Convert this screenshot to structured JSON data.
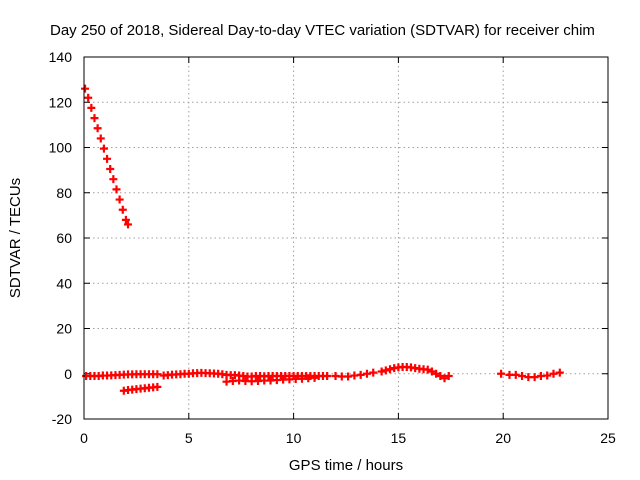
{
  "chart_data": {
    "type": "scatter",
    "title": "Day 250 of 2018, Sidereal Day-to-day VTEC variation (SDTVAR) for receiver chim",
    "xlabel": "GPS time / hours",
    "ylabel": "SDTVAR / TECUs",
    "xlim": [
      0,
      25
    ],
    "ylim": [
      -20,
      140
    ],
    "xticks": [
      0,
      5,
      10,
      15,
      20,
      25
    ],
    "yticks": [
      -20,
      0,
      20,
      40,
      60,
      80,
      100,
      120,
      140
    ],
    "xtick_labels": [
      "0",
      "5",
      "10",
      "15",
      "20",
      "25"
    ],
    "ytick_labels": [
      "-20",
      "0",
      "20",
      "40",
      "60",
      "80",
      "100",
      "120",
      "140"
    ],
    "grid": true,
    "marker": "plus",
    "color": "#ff0000",
    "series": [
      {
        "name": "SDTVAR",
        "x": [
          0.05,
          0.2,
          0.35,
          0.5,
          0.65,
          0.8,
          0.95,
          1.1,
          1.25,
          1.4,
          1.55,
          1.7,
          1.85,
          2.0,
          2.1,
          0.1,
          0.3,
          0.5,
          0.7,
          0.9,
          1.1,
          1.3,
          1.5,
          1.7,
          1.9,
          2.1,
          2.3,
          2.5,
          2.7,
          2.9,
          3.1,
          3.3,
          3.5,
          1.9,
          2.1,
          2.3,
          2.5,
          2.7,
          2.9,
          3.1,
          3.3,
          3.5,
          3.8,
          4.0,
          4.2,
          4.4,
          4.6,
          4.8,
          5.0,
          5.2,
          5.4,
          5.6,
          5.8,
          6.0,
          6.2,
          6.4,
          6.6,
          6.8,
          7.0,
          7.2,
          7.4,
          7.6,
          7.8,
          8.0,
          8.2,
          8.4,
          8.6,
          8.8,
          9.0,
          9.2,
          9.4,
          9.6,
          9.8,
          10.0,
          10.2,
          10.4,
          10.6,
          10.8,
          11.0,
          11.2,
          11.4,
          11.6,
          6.8,
          7.1,
          7.4,
          7.7,
          8.0,
          8.3,
          8.6,
          8.9,
          9.2,
          9.5,
          9.8,
          10.1,
          10.4,
          10.7,
          11.0,
          12.0,
          12.3,
          12.6,
          12.9,
          13.2,
          13.5,
          13.8,
          14.2,
          14.4,
          14.6,
          14.8,
          15.0,
          15.2,
          15.4,
          15.6,
          15.8,
          16.0,
          16.2,
          16.4,
          16.6,
          16.8,
          17.0,
          17.2,
          17.4,
          19.9,
          20.3,
          20.6,
          20.9,
          21.2,
          21.5,
          21.8,
          22.1,
          22.4,
          22.7
        ],
        "y": [
          126,
          122,
          117.5,
          113,
          108.5,
          104,
          99.5,
          95,
          90.5,
          86,
          81.5,
          77,
          72.5,
          68,
          66,
          -1,
          -1,
          -1,
          -1,
          -0.8,
          -0.8,
          -0.7,
          -0.6,
          -0.5,
          -0.4,
          -0.3,
          -0.3,
          -0.2,
          -0.2,
          -0.2,
          -0.2,
          -0.2,
          -0.2,
          -7.5,
          -7.2,
          -7,
          -6.8,
          -6.6,
          -6.4,
          -6.2,
          -6,
          -5.8,
          -0.8,
          -0.6,
          -0.4,
          -0.3,
          -0.2,
          0,
          0,
          0.2,
          0.3,
          0.4,
          0.3,
          0.2,
          0.1,
          0,
          -0.2,
          -0.5,
          -0.6,
          -0.6,
          -0.8,
          -1,
          -1.2,
          -1.2,
          -1,
          -1,
          -1.1,
          -1,
          -1,
          -1,
          -1,
          -1,
          -1,
          -1,
          -1,
          -1,
          -1,
          -1,
          -1,
          -1,
          -1,
          -1,
          -3.5,
          -3.2,
          -3,
          -3.2,
          -3.3,
          -3.2,
          -3,
          -3,
          -2.8,
          -2.6,
          -2.5,
          -2.3,
          -2.2,
          -2,
          -1.8,
          -1,
          -1.2,
          -1.2,
          -0.8,
          -0.5,
          0,
          0.5,
          1,
          1.5,
          2,
          2.5,
          2.8,
          3,
          3,
          2.8,
          2.5,
          2.2,
          2,
          1.8,
          1,
          0,
          -1,
          -2,
          -1,
          0,
          -0.5,
          -0.5,
          -1,
          -1.5,
          -1.5,
          -1,
          -0.8,
          0,
          0.5
        ]
      }
    ]
  }
}
